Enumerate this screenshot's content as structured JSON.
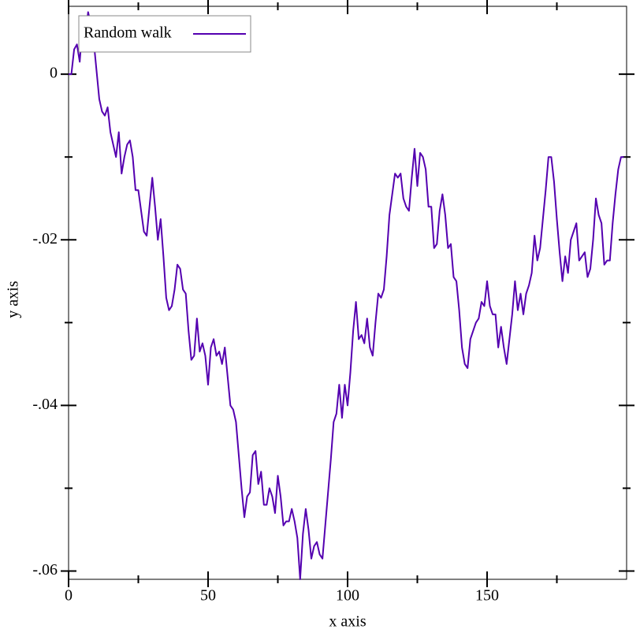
{
  "chart_data": {
    "type": "line",
    "x_label": "x axis",
    "y_label": "y axis",
    "xlim": [
      0,
      200
    ],
    "ylim": [
      -0.061,
      0.0082
    ],
    "xticks": [
      0,
      50,
      100,
      150
    ],
    "xticks_minor": [
      25,
      75,
      125,
      175
    ],
    "yticks": [
      0,
      {
        "value": -0.02,
        "label": "-.02"
      },
      {
        "value": -0.04,
        "label": "-.04"
      },
      {
        "value": -0.06,
        "label": "-.06"
      }
    ],
    "yticks_minor": [
      -0.01,
      -0.03,
      -0.05
    ],
    "legend": "upper-left",
    "x": [
      0,
      1,
      2,
      3,
      4,
      5,
      6,
      7,
      8,
      9,
      10,
      11,
      12,
      13,
      14,
      15,
      16,
      17,
      18,
      19,
      20,
      21,
      22,
      23,
      24,
      25,
      26,
      27,
      28,
      29,
      30,
      31,
      32,
      33,
      34,
      35,
      36,
      37,
      38,
      39,
      40,
      41,
      42,
      43,
      44,
      45,
      46,
      47,
      48,
      49,
      50,
      51,
      52,
      53,
      54,
      55,
      56,
      57,
      58,
      59,
      60,
      61,
      62,
      63,
      64,
      65,
      66,
      67,
      68,
      69,
      70,
      71,
      72,
      73,
      74,
      75,
      76,
      77,
      78,
      79,
      80,
      81,
      82,
      83,
      84,
      85,
      86,
      87,
      88,
      89,
      90,
      91,
      92,
      93,
      94,
      95,
      96,
      97,
      98,
      99,
      100,
      101,
      102,
      103,
      104,
      105,
      106,
      107,
      108,
      109,
      110,
      111,
      112,
      113,
      114,
      115,
      116,
      117,
      118,
      119,
      120,
      121,
      122,
      123,
      124,
      125,
      126,
      127,
      128,
      129,
      130,
      131,
      132,
      133,
      134,
      135,
      136,
      137,
      138,
      139,
      140,
      141,
      142,
      143,
      144,
      145,
      146,
      147,
      148,
      149,
      150,
      151,
      152,
      153,
      154,
      155,
      156,
      157,
      158,
      159,
      160,
      161,
      162,
      163,
      164,
      165,
      166,
      167,
      168,
      169,
      170,
      171,
      172,
      173,
      174,
      175,
      176,
      177,
      178,
      179,
      180,
      181,
      182,
      183,
      184,
      185,
      186,
      187,
      188,
      189,
      190,
      191,
      192,
      193,
      194,
      195,
      196,
      197,
      198,
      199
    ],
    "series": [
      {
        "name": "Random walk",
        "color": "#5400b0",
        "values": [
          0,
          0,
          0.003,
          0.0036,
          0.0015,
          0.006,
          0.0045,
          0.0075,
          0.006,
          0.004,
          0.0005,
          -0.003,
          -0.0045,
          -0.005,
          -0.004,
          -0.007,
          -0.0085,
          -0.01,
          -0.007,
          -0.012,
          -0.01,
          -0.0085,
          -0.008,
          -0.01,
          -0.014,
          -0.014,
          -0.0165,
          -0.019,
          -0.0195,
          -0.016,
          -0.0125,
          -0.016,
          -0.02,
          -0.0175,
          -0.022,
          -0.027,
          -0.0285,
          -0.028,
          -0.026,
          -0.023,
          -0.0235,
          -0.026,
          -0.0265,
          -0.031,
          -0.0345,
          -0.034,
          -0.0295,
          -0.0335,
          -0.0325,
          -0.034,
          -0.0375,
          -0.033,
          -0.032,
          -0.034,
          -0.0335,
          -0.035,
          -0.033,
          -0.0365,
          -0.04,
          -0.0405,
          -0.042,
          -0.046,
          -0.05,
          -0.0535,
          -0.051,
          -0.0505,
          -0.046,
          -0.0455,
          -0.0495,
          -0.048,
          -0.052,
          -0.052,
          -0.05,
          -0.051,
          -0.053,
          -0.0485,
          -0.051,
          -0.0545,
          -0.054,
          -0.054,
          -0.0525,
          -0.054,
          -0.056,
          -0.061,
          -0.0555,
          -0.0525,
          -0.055,
          -0.0585,
          -0.057,
          -0.0565,
          -0.058,
          -0.0585,
          -0.0545,
          -0.0505,
          -0.0465,
          -0.042,
          -0.041,
          -0.0375,
          -0.0415,
          -0.0375,
          -0.04,
          -0.036,
          -0.031,
          -0.0275,
          -0.032,
          -0.0315,
          -0.0325,
          -0.0295,
          -0.033,
          -0.034,
          -0.03,
          -0.0265,
          -0.027,
          -0.026,
          -0.022,
          -0.017,
          -0.0145,
          -0.012,
          -0.0125,
          -0.012,
          -0.015,
          -0.016,
          -0.0165,
          -0.0125,
          -0.009,
          -0.0135,
          -0.0095,
          -0.01,
          -0.0115,
          -0.016,
          -0.016,
          -0.021,
          -0.0205,
          -0.0165,
          -0.0145,
          -0.017,
          -0.021,
          -0.0205,
          -0.0245,
          -0.025,
          -0.0285,
          -0.033,
          -0.035,
          -0.0355,
          -0.032,
          -0.031,
          -0.03,
          -0.0295,
          -0.0275,
          -0.028,
          -0.025,
          -0.028,
          -0.029,
          -0.029,
          -0.033,
          -0.0305,
          -0.033,
          -0.035,
          -0.032,
          -0.029,
          -0.025,
          -0.0285,
          -0.0265,
          -0.029,
          -0.0265,
          -0.0255,
          -0.024,
          -0.0195,
          -0.0225,
          -0.021,
          -0.0175,
          -0.014,
          -0.01,
          -0.01,
          -0.013,
          -0.0175,
          -0.0215,
          -0.025,
          -0.022,
          -0.024,
          -0.02,
          -0.019,
          -0.018,
          -0.0225,
          -0.022,
          -0.0215,
          -0.0245,
          -0.0235,
          -0.02,
          -0.015,
          -0.017,
          -0.018,
          -0.023,
          -0.0225,
          -0.0225,
          -0.018,
          -0.0145,
          -0.0115,
          -0.01,
          -0.01
        ]
      }
    ]
  }
}
